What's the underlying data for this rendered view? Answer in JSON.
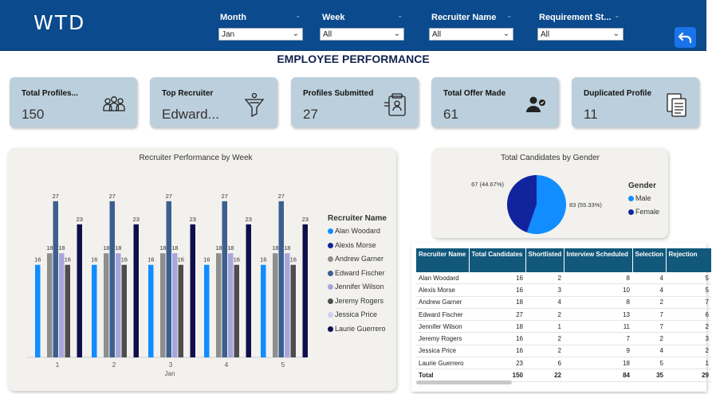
{
  "logo": "WTD",
  "filters": [
    {
      "label": "Month",
      "value": "Jan"
    },
    {
      "label": "Week",
      "value": "All"
    },
    {
      "label": "Recruiter Name",
      "value": "All"
    },
    {
      "label": "Requirement St...",
      "value": "All"
    }
  ],
  "page_title": "EMPLOYEE PERFORMANCE",
  "kpis": [
    {
      "label": "Total Profiles...",
      "value": "150",
      "icon": "team-icon"
    },
    {
      "label": "Top Recruiter",
      "value": "Edward...",
      "icon": "funnel-person-icon"
    },
    {
      "label": "Profiles Submitted",
      "value": "27",
      "icon": "id-card-icon"
    },
    {
      "label": "Total Offer Made",
      "value": "61",
      "icon": "user-offer-icon"
    },
    {
      "label": "Duplicated Profile",
      "value": "11",
      "icon": "duplicate-docs-icon"
    }
  ],
  "colors": {
    "header": "#0b4a8c",
    "kpi_bg": "#bccfdc",
    "table_header": "#11587a"
  },
  "chart_data": [
    {
      "type": "bar",
      "title": "Recruiter Performance by Week",
      "xlabel": "Jan",
      "categories": [
        "1",
        "2",
        "3",
        "4",
        "5"
      ],
      "ylim": [
        0,
        30
      ],
      "legend_title": "Recruiter Name",
      "series": [
        {
          "name": "Alan Woodard",
          "color": "#118dff",
          "values": [
            16,
            16,
            16,
            16,
            16
          ]
        },
        {
          "name": "Alexis Morse",
          "color": "#12239e",
          "values": [
            null,
            null,
            null,
            null,
            null
          ]
        },
        {
          "name": "Andrew Garner",
          "color": "#8e8e8e",
          "values": [
            18,
            18,
            18,
            18,
            18
          ]
        },
        {
          "name": "Edward Fischer",
          "color": "#3d5f8f",
          "values": [
            27,
            27,
            27,
            27,
            27
          ]
        },
        {
          "name": "Jennifer Wilson",
          "color": "#a6a6dc",
          "values": [
            18,
            18,
            18,
            18,
            18
          ]
        },
        {
          "name": "Jeremy Rogers",
          "color": "#4d4d4d",
          "values": [
            16,
            16,
            16,
            16,
            16
          ]
        },
        {
          "name": "Jessica Price",
          "color": "#cdd1ee",
          "values": [
            null,
            null,
            null,
            null,
            null
          ]
        },
        {
          "name": "Laurie Guerrero",
          "color": "#0f0f4b",
          "values": [
            23,
            23,
            23,
            23,
            23
          ]
        }
      ]
    },
    {
      "type": "pie",
      "title": "Total Candidates by Gender",
      "legend_title": "Gender",
      "slices": [
        {
          "name": "Male",
          "value": 83,
          "label": "83 (55.33%)",
          "color": "#118dff"
        },
        {
          "name": "Female",
          "value": 67,
          "label": "67 (44.67%)",
          "color": "#12239e"
        }
      ]
    },
    {
      "type": "table",
      "columns": [
        "Recruiter Name",
        "Total Candidates",
        "Shortlisted",
        "Interview Scheduled",
        "Selection",
        "Rejection"
      ],
      "rows": [
        [
          "Alan Woodard",
          "16",
          "2",
          "8",
          "4",
          "5"
        ],
        [
          "Alexis Morse",
          "16",
          "3",
          "10",
          "4",
          "5"
        ],
        [
          "Andrew Garner",
          "18",
          "4",
          "8",
          "2",
          "7"
        ],
        [
          "Edward Fischer",
          "27",
          "2",
          "13",
          "7",
          "6"
        ],
        [
          "Jennifer Wilson",
          "18",
          "1",
          "11",
          "7",
          "2"
        ],
        [
          "Jeremy Rogers",
          "16",
          "2",
          "7",
          "2",
          "3"
        ],
        [
          "Jessica Price",
          "16",
          "2",
          "9",
          "4",
          "2"
        ],
        [
          "Laurie Guerrero",
          "23",
          "6",
          "18",
          "5",
          "1"
        ]
      ],
      "total": [
        "Total",
        "150",
        "22",
        "84",
        "35",
        "29"
      ]
    }
  ]
}
